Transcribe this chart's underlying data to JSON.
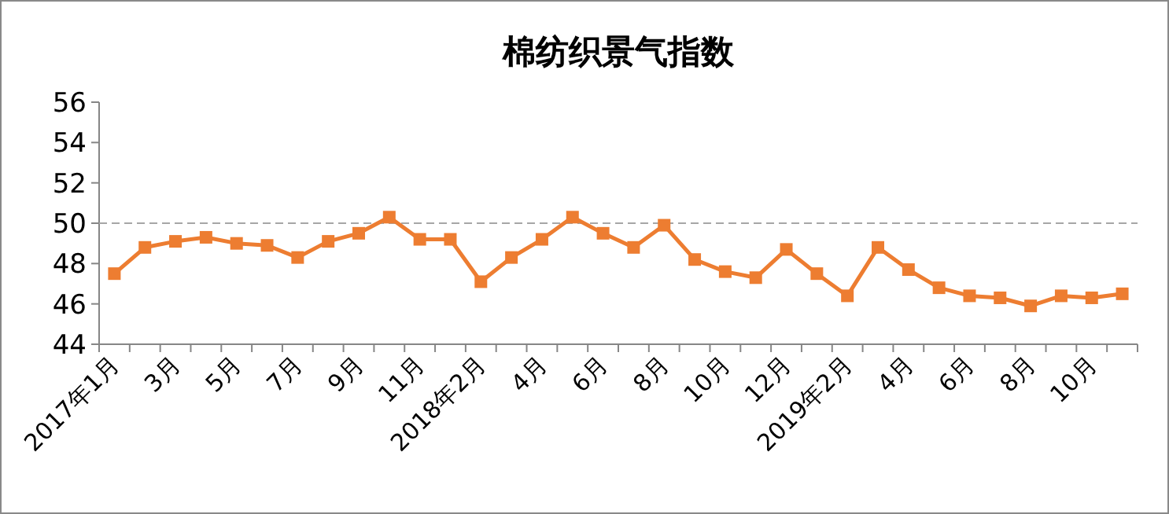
{
  "chart_data": {
    "type": "line",
    "title": "棉纺织景气指数",
    "categories": [
      "2017年1月",
      null,
      "3月",
      null,
      "5月",
      null,
      "7月",
      null,
      "9月",
      null,
      "11月",
      null,
      "2018年2月",
      null,
      "4月",
      null,
      "6月",
      null,
      "8月",
      null,
      "10月",
      null,
      "12月",
      null,
      "2019年2月",
      null,
      "4月",
      null,
      "6月",
      null,
      "8月",
      null,
      "10月",
      null
    ],
    "series": [
      {
        "color": "#ed7d31",
        "values": [
          47.5,
          48.8,
          49.1,
          49.3,
          49.0,
          48.9,
          48.3,
          49.1,
          49.5,
          50.3,
          49.2,
          49.2,
          47.1,
          48.3,
          49.2,
          50.3,
          49.5,
          48.8,
          49.9,
          48.2,
          47.6,
          47.3,
          48.7,
          47.5,
          46.4,
          48.8,
          47.7,
          46.8,
          46.4,
          46.3,
          45.9,
          46.4,
          46.3,
          46.5
        ]
      }
    ],
    "ylim": [
      44,
      56
    ],
    "yticks": [
      44,
      46,
      48,
      50,
      52,
      54,
      56
    ],
    "ref_lines": [
      {
        "axis": "y",
        "value": 50,
        "line_style": "dashed",
        "color": "#a6a6a6"
      }
    ],
    "marker": "square",
    "line_style": "solid",
    "grid": false
  }
}
